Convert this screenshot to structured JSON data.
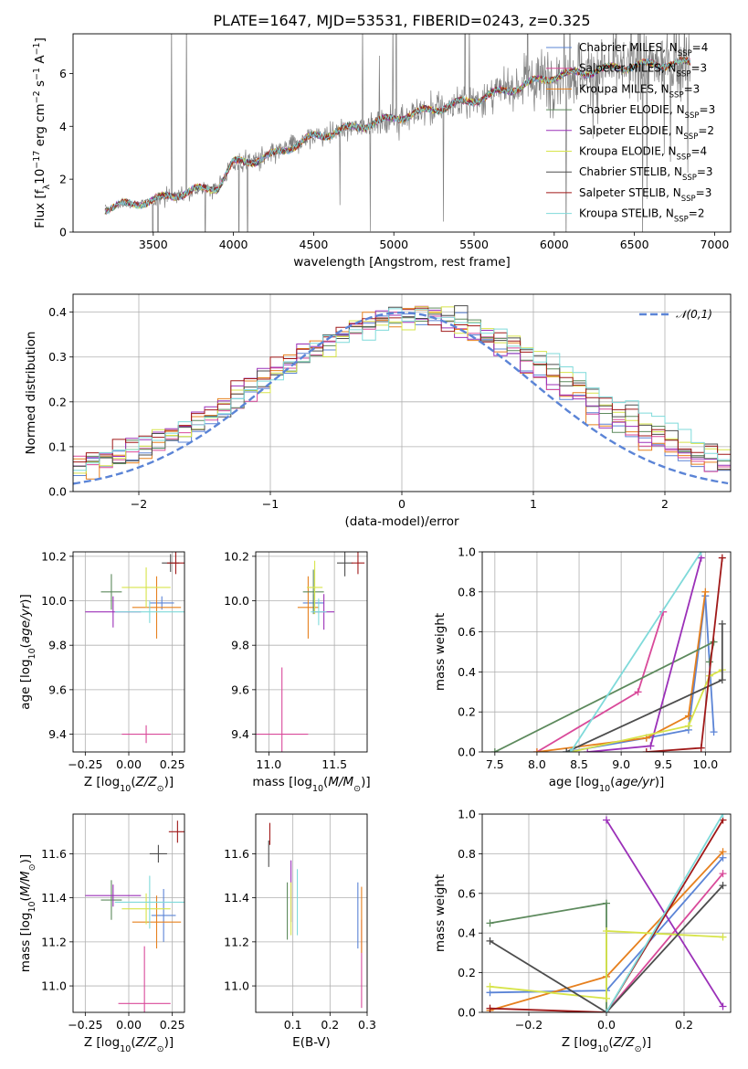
{
  "title": "PLATE=1647, MJD=53531, FIBERID=0243, z=0.325",
  "colors": {
    "chab_miles": "#5b84d6",
    "salp_miles": "#d94a9a",
    "krou_miles": "#e6801e",
    "chab_elodie": "#5d8a5d",
    "salp_elodie": "#9b30b8",
    "krou_elodie": "#d7e44a",
    "chab_stelib": "#4d4d4d",
    "salp_stelib": "#a01919",
    "krou_stelib": "#7fdada",
    "normal": "#5b84d6",
    "data": "#808080"
  },
  "chart_data": [
    {
      "id": "spectrum",
      "type": "line",
      "xlabel": "wavelength [Angstrom, rest frame]",
      "ylabel": "Flux [f_λ10^-17 erg cm^-2 s^-1 A^-1]",
      "xlim": [
        3000,
        7100
      ],
      "ylim": [
        0,
        7.5
      ],
      "xticks": [
        "3500",
        "4000",
        "4500",
        "5000",
        "5500",
        "6000",
        "6500",
        "7000"
      ],
      "yticks": [
        "0",
        "2",
        "4",
        "6"
      ],
      "data_range": [
        3200,
        6850
      ],
      "model_trend": {
        "x": [
          3200,
          3500,
          3700,
          3900,
          4000,
          4200,
          4500,
          5000,
          5500,
          6000,
          6500,
          6850
        ],
        "y": [
          0.9,
          1.2,
          1.5,
          1.7,
          2.6,
          2.8,
          3.6,
          4.3,
          5.0,
          5.9,
          6.3,
          6.4
        ]
      },
      "legend": [
        {
          "label": "Chabrier MILES, N",
          "sub": "SSP",
          "suffix": "=4",
          "color": "chab_miles"
        },
        {
          "label": "Salpeter MILES, N",
          "sub": "SSP",
          "suffix": "=3",
          "color": "salp_miles"
        },
        {
          "label": "Kroupa MILES, N",
          "sub": "SSP",
          "suffix": "=3",
          "color": "krou_miles"
        },
        {
          "label": "Chabrier ELODIE, N",
          "sub": "SSP",
          "suffix": "=3",
          "color": "chab_elodie"
        },
        {
          "label": "Salpeter ELODIE, N",
          "sub": "SSP",
          "suffix": "=2",
          "color": "salp_elodie"
        },
        {
          "label": "Kroupa ELODIE, N",
          "sub": "SSP",
          "suffix": "=4",
          "color": "krou_elodie"
        },
        {
          "label": "Chabrier STELIB, N",
          "sub": "SSP",
          "suffix": "=3",
          "color": "chab_stelib"
        },
        {
          "label": "Salpeter STELIB, N",
          "sub": "SSP",
          "suffix": "=3",
          "color": "salp_stelib"
        },
        {
          "label": "Kroupa STELIB, N",
          "sub": "SSP",
          "suffix": "=2",
          "color": "krou_stelib"
        }
      ]
    },
    {
      "id": "residuals",
      "type": "line",
      "xlabel": "(data-model)/error",
      "ylabel": "Normed distribution",
      "xlim": [
        -2.5,
        2.5
      ],
      "ylim": [
        0,
        0.44
      ],
      "xticks": [
        "-2",
        "-1",
        "0",
        "1",
        "2"
      ],
      "yticks": [
        "0.0",
        "0.1",
        "0.2",
        "0.3",
        "0.4"
      ],
      "legend": "𝒩(0,1)",
      "legend_position": "top-right",
      "grid": true
    },
    {
      "id": "z_age",
      "type": "scatter",
      "xlabel": "Z [log10(Z/Z⊙)]",
      "ylabel": "age [log10(age/yr)]",
      "xlim": [
        -0.32,
        0.32
      ],
      "ylim": [
        9.32,
        10.22
      ],
      "xticks": [
        "-0.25",
        "0.00",
        "0.25"
      ],
      "yticks": [
        "9.4",
        "9.6",
        "9.8",
        "10.0",
        "10.2"
      ]
    },
    {
      "id": "mass_age",
      "type": "scatter",
      "xlabel": "mass [log10(M/M⊙)]",
      "xlim": [
        10.9,
        11.75
      ],
      "ylim": [
        9.32,
        10.22
      ],
      "xticks": [
        "11.0",
        "11.5"
      ],
      "yticks": [
        "9.4",
        "9.6",
        "9.8",
        "10.0",
        "10.2"
      ]
    },
    {
      "id": "age_weight",
      "type": "line",
      "xlabel": "age [log10(age/yr)]",
      "ylabel": "mass weight",
      "xlim": [
        7.35,
        10.3
      ],
      "ylim": [
        0,
        1
      ],
      "xticks": [
        "7.5",
        "8.0",
        "8.5",
        "9.0",
        "9.5",
        "10.0"
      ],
      "yticks": [
        "0.0",
        "0.2",
        "0.4",
        "0.6",
        "0.8",
        "1.0"
      ]
    },
    {
      "id": "z_mass",
      "type": "scatter",
      "xlabel": "Z [log10(Z/Z⊙)]",
      "ylabel": "mass [log10(M/M⊙)]",
      "xlim": [
        -0.32,
        0.32
      ],
      "ylim": [
        10.88,
        11.78
      ],
      "xticks": [
        "-0.25",
        "0.00",
        "0.25"
      ],
      "yticks": [
        "11.0",
        "11.2",
        "11.4",
        "11.6"
      ]
    },
    {
      "id": "ebv_mass",
      "type": "scatter",
      "xlabel": "E(B-V)",
      "xlim": [
        0.0,
        0.3
      ],
      "ylim": [
        10.88,
        11.78
      ],
      "xticks": [
        "0.1",
        "0.2",
        "0.3"
      ],
      "yticks": [
        "11.0",
        "11.2",
        "11.4",
        "11.6"
      ]
    },
    {
      "id": "z_weight",
      "type": "line",
      "xlabel": "Z [log10(Z/Z⊙)]",
      "ylabel": "mass weight",
      "xlim": [
        -0.32,
        0.32
      ],
      "ylim": [
        0,
        1
      ],
      "xticks": [
        "-0.2",
        "0.0",
        "0.2"
      ],
      "yticks": [
        "0.0",
        "0.2",
        "0.4",
        "0.6",
        "0.8",
        "1.0"
      ]
    }
  ],
  "points": {
    "z_age": [
      {
        "c": "chab_miles",
        "x": 0.19,
        "xe": 0.07,
        "y": 9.99,
        "ye": 0.03
      },
      {
        "c": "salp_miles",
        "x": 0.1,
        "xe": 0.14,
        "y": 9.4,
        "ye": 0.04
      },
      {
        "c": "krou_miles",
        "x": 0.16,
        "xe": 0.14,
        "y": 9.97,
        "ye": 0.14
      },
      {
        "c": "chab_elodie",
        "x": -0.1,
        "xe": 0.06,
        "y": 10.04,
        "ye": 0.08
      },
      {
        "c": "salp_elodie",
        "x": -0.09,
        "xe": 0.16,
        "y": 9.95,
        "ye": 0.07
      },
      {
        "c": "krou_elodie",
        "x": 0.1,
        "xe": 0.14,
        "y": 10.06,
        "ye": 0.09
      },
      {
        "c": "chab_stelib",
        "x": 0.24,
        "xe": 0.05,
        "y": 10.17,
        "ye": 0.04
      },
      {
        "c": "salp_stelib",
        "x": 0.27,
        "xe": 0.05,
        "y": 10.17,
        "ye": 0.05
      },
      {
        "c": "krou_stelib",
        "x": 0.12,
        "xe": 0.2,
        "y": 9.95,
        "ye": 0.05
      }
    ],
    "mass_age": [
      {
        "c": "chab_miles",
        "x": 11.34,
        "xe": 0.08,
        "y": 9.99,
        "ye": 0.04
      },
      {
        "c": "salp_miles",
        "x": 11.1,
        "xe": 0.2,
        "y": 9.4,
        "ye": 0.3
      },
      {
        "c": "krou_miles",
        "x": 11.3,
        "xe": 0.08,
        "y": 9.97,
        "ye": 0.14
      },
      {
        "c": "chab_elodie",
        "x": 11.34,
        "xe": 0.08,
        "y": 10.04,
        "ye": 0.1
      },
      {
        "c": "salp_elodie",
        "x": 11.42,
        "xe": 0.08,
        "y": 9.95,
        "ye": 0.08
      },
      {
        "c": "krou_elodie",
        "x": 11.35,
        "xe": 0.06,
        "y": 10.06,
        "ye": 0.12
      },
      {
        "c": "chab_stelib",
        "x": 11.58,
        "xe": 0.06,
        "y": 10.17,
        "ye": 0.06
      },
      {
        "c": "salp_stelib",
        "x": 11.68,
        "xe": 0.05,
        "y": 10.17,
        "ye": 0.05
      },
      {
        "c": "krou_stelib",
        "x": 11.38,
        "xe": 0.06,
        "y": 9.95,
        "ye": 0.06
      }
    ],
    "z_mass": [
      {
        "c": "chab_miles",
        "x": 0.2,
        "xe": 0.07,
        "y": 11.32,
        "ye": 0.12
      },
      {
        "c": "salp_miles",
        "x": 0.09,
        "xe": 0.15,
        "y": 10.92,
        "ye": 0.26
      },
      {
        "c": "krou_miles",
        "x": 0.16,
        "xe": 0.14,
        "y": 11.29,
        "ye": 0.12
      },
      {
        "c": "chab_elodie",
        "x": -0.1,
        "xe": 0.06,
        "y": 11.39,
        "ye": 0.09
      },
      {
        "c": "salp_elodie",
        "x": -0.09,
        "xe": 0.16,
        "y": 11.41,
        "ye": 0.05
      },
      {
        "c": "krou_elodie",
        "x": 0.1,
        "xe": 0.14,
        "y": 11.35,
        "ye": 0.07
      },
      {
        "c": "chab_stelib",
        "x": 0.17,
        "xe": 0.05,
        "y": 11.6,
        "ye": 0.04
      },
      {
        "c": "salp_stelib",
        "x": 0.28,
        "xe": 0.05,
        "y": 11.7,
        "ye": 0.05
      },
      {
        "c": "krou_stelib",
        "x": 0.12,
        "xe": 0.2,
        "y": 11.38,
        "ye": 0.12
      }
    ],
    "ebv_mass": [
      {
        "c": "chab_miles",
        "x": 0.275,
        "y": 11.32,
        "ye": 0.15
      },
      {
        "c": "salp_miles",
        "x": 0.285,
        "y": 11.1,
        "ye": 0.2
      },
      {
        "c": "krou_miles",
        "x": 0.285,
        "y": 11.3,
        "ye": 0.15
      },
      {
        "c": "chab_elodie",
        "x": 0.085,
        "y": 11.34,
        "ye": 0.13
      },
      {
        "c": "salp_elodie",
        "x": 0.095,
        "y": 11.43,
        "ye": 0.14
      },
      {
        "c": "krou_elodie",
        "x": 0.095,
        "y": 11.35,
        "ye": 0.12
      },
      {
        "c": "chab_stelib",
        "x": 0.035,
        "y": 11.6,
        "ye": 0.06
      },
      {
        "c": "salp_stelib",
        "x": 0.038,
        "y": 11.69,
        "ye": 0.05
      },
      {
        "c": "krou_stelib",
        "x": 0.112,
        "y": 11.38,
        "ye": 0.15
      }
    ],
    "age_weight": [
      {
        "c": "chab_miles",
        "x": [
          8.35,
          9.3,
          9.8,
          10.0,
          10.1
        ],
        "y": [
          0.0,
          0.07,
          0.11,
          0.78,
          0.1
        ]
      },
      {
        "c": "salp_miles",
        "x": [
          8.0,
          9.2,
          9.5
        ],
        "y": [
          0.0,
          0.3,
          0.7
        ]
      },
      {
        "c": "krou_miles",
        "x": [
          8.0,
          9.3,
          9.8,
          10.0
        ],
        "y": [
          0.0,
          0.07,
          0.18,
          0.8
        ]
      },
      {
        "c": "chab_elodie",
        "x": [
          7.5,
          10.1,
          10.05
        ],
        "y": [
          0.0,
          0.55,
          0.45
        ]
      },
      {
        "c": "salp_elodie",
        "x": [
          8.6,
          9.35,
          9.95
        ],
        "y": [
          0.0,
          0.03,
          0.97
        ]
      },
      {
        "c": "krou_elodie",
        "x": [
          8.4,
          9.8,
          10.05,
          10.2
        ],
        "y": [
          0.0,
          0.13,
          0.38,
          0.41
        ]
      },
      {
        "c": "chab_stelib",
        "x": [
          8.35,
          10.2,
          10.2
        ],
        "y": [
          0.0,
          0.36,
          0.64
        ]
      },
      {
        "c": "salp_stelib",
        "x": [
          9.3,
          9.95,
          10.2
        ],
        "y": [
          0.0,
          0.02,
          0.97
        ]
      },
      {
        "c": "krou_stelib",
        "x": [
          8.4,
          9.95
        ],
        "y": [
          0.0,
          1.0
        ]
      }
    ],
    "z_weight": [
      {
        "c": "chab_miles",
        "x": [
          -0.3,
          0.0,
          0.3
        ],
        "y": [
          0.1,
          0.11,
          0.78
        ]
      },
      {
        "c": "salp_miles",
        "x": [
          0.0,
          0.3
        ],
        "y": [
          0.0,
          0.7
        ]
      },
      {
        "c": "krou_miles",
        "x": [
          -0.3,
          0.0,
          0.3
        ],
        "y": [
          0.01,
          0.18,
          0.81
        ]
      },
      {
        "c": "chab_elodie",
        "x": [
          -0.3,
          0.0,
          0.0
        ],
        "y": [
          0.45,
          0.55,
          0.0
        ]
      },
      {
        "c": "salp_elodie",
        "x": [
          0.0,
          0.3
        ],
        "y": [
          0.97,
          0.03
        ]
      },
      {
        "c": "krou_elodie",
        "x": [
          -0.3,
          0.0,
          0.0,
          0.3
        ],
        "y": [
          0.13,
          0.07,
          0.41,
          0.38
        ]
      },
      {
        "c": "chab_stelib",
        "x": [
          -0.3,
          0.0,
          0.3
        ],
        "y": [
          0.36,
          0.0,
          0.64
        ]
      },
      {
        "c": "salp_stelib",
        "x": [
          -0.3,
          0.0,
          0.3
        ],
        "y": [
          0.02,
          0.0,
          0.97
        ]
      },
      {
        "c": "krou_stelib",
        "x": [
          0.0,
          0.3
        ],
        "y": [
          0.0,
          1.0
        ]
      }
    ]
  }
}
